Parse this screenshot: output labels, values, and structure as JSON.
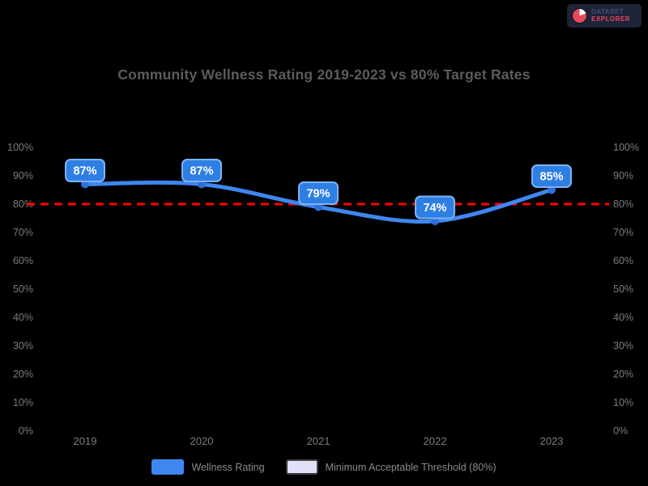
{
  "logo": {
    "line1": "DATASET",
    "line2": "EXPLORER"
  },
  "chart_data": {
    "type": "line",
    "title": "Community Wellness Rating 2019-2023 vs 80% Target Rates",
    "categories": [
      "2019",
      "2020",
      "2021",
      "2022",
      "2023"
    ],
    "series": [
      {
        "name": "Wellness Rating",
        "values": [
          87,
          87,
          79,
          74,
          85
        ],
        "color": "#3f87f0"
      },
      {
        "name": "Minimum Acceptable Threshold (80%)",
        "type": "threshold",
        "value": 80,
        "color": "#fe0000",
        "dashed": true
      }
    ],
    "data_labels": [
      "87%",
      "87%",
      "79%",
      "74%",
      "85%"
    ],
    "xlabel": "",
    "ylabel": "",
    "ylim": [
      0,
      100
    ],
    "y_ticks": [
      "100%",
      "90%",
      "80%",
      "70%",
      "60%",
      "50%",
      "40%",
      "30%",
      "20%",
      "10%",
      "0%"
    ],
    "y_axis_right_ticks": [
      "100%",
      "90%",
      "80%",
      "70%",
      "60%",
      "50%",
      "40%",
      "30%",
      "20%",
      "10%",
      "0%"
    ],
    "grid": false,
    "legend_position": "bottom"
  },
  "colors": {
    "background": "#000000",
    "title_text": "#5c5c5c",
    "axis_text": "#7d7d7d",
    "line": "#3f87f0",
    "point": "#2f6fd8",
    "threshold": "#fe0000",
    "label_bg": "#2e7fe3",
    "label_border": "#7db2f5",
    "label_text": "#ffffff",
    "legend_text": "#8a8a8a"
  }
}
